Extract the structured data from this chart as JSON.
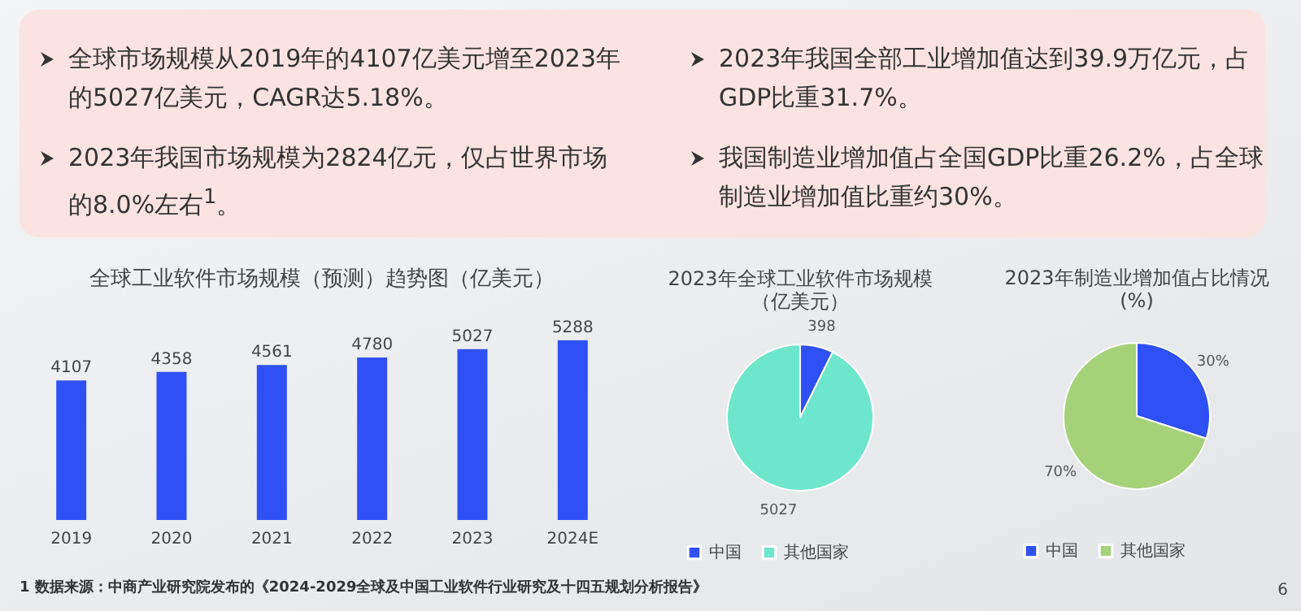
{
  "chart_data": [
    {
      "type": "other",
      "annotations": [
        "全球市场规模从2019年的4107亿美元增至2023年的5027亿美元，CAGR达5.18%。",
        "2023年我国全部工业增加值达到39.9万亿元，占GDP比重31.7%。",
        "2023年我国市场规模为2824亿元，仅占世界市场的8.0%左右$^{1}$。",
        "我国制造业增加值占全国GDP比重26.2%，占全球制造业增加值比重约30%。",
        "1 数据来源：中商产业研究院发布的《2024-2029全球及中国工业软件行业研究及十四五规划分析报告》",
        "6"
      ]
    },
    {
      "type": "bar",
      "title": "全球工业软件市场规模（预测）趋势图（亿美元）",
      "categories": [
        "2019",
        "2020",
        "2021",
        "2022",
        "2023",
        "2024E"
      ],
      "values": [
        4107,
        4358,
        4561,
        4780,
        5027,
        5288
      ],
      "color": "#2f50f5",
      "data_labels": true,
      "tick_labels": "x"
    },
    {
      "type": "pie",
      "title": "2023年全球工业软件市场规模（亿美元）",
      "categories": [
        "中国",
        "其他国家"
      ],
      "values": [
        398,
        5027
      ],
      "colors": [
        "#2f50f5",
        "#6ee6cc"
      ],
      "data_labels": true,
      "legend": "bottom"
    },
    {
      "type": "pie",
      "title": "2023年制造业增加值占比情况(%)",
      "categories": [
        "中国",
        "其他国家"
      ],
      "values": [
        30,
        70
      ],
      "colors": [
        "#2f50f5",
        "#a5d178"
      ],
      "value_labels": [
        "30%",
        "70%"
      ],
      "legend": "bottom"
    }
  ]
}
